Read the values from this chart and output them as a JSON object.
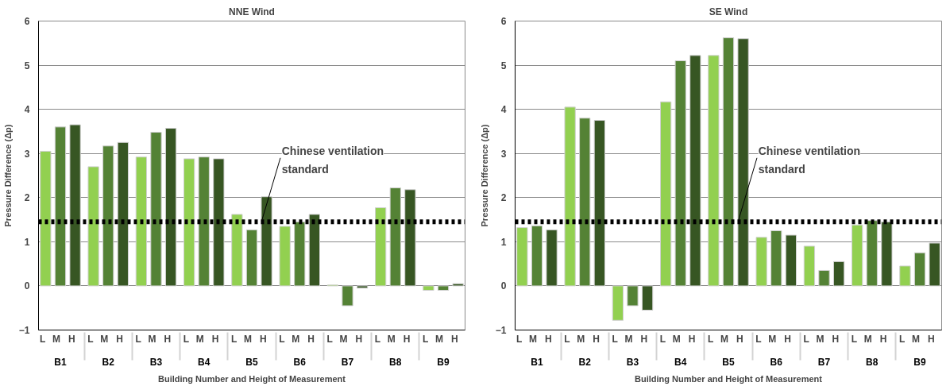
{
  "chart_data": [
    {
      "type": "bar",
      "title": "NNE Wind",
      "xlabel": "Building Number and Height of Measurement",
      "ylabel": "Pressure Difference (Δp)",
      "categories": [
        "L",
        "M",
        "H",
        "L",
        "M",
        "H",
        "L",
        "M",
        "H",
        "L",
        "M",
        "H",
        "L",
        "M",
        "H",
        "L",
        "M",
        "H",
        "L",
        "M",
        "H",
        "L",
        "M",
        "H",
        "L",
        "M",
        "H"
      ],
      "values": [
        3.05,
        3.6,
        3.65,
        2.7,
        3.17,
        3.25,
        2.92,
        3.48,
        3.57,
        2.88,
        2.92,
        2.88,
        1.62,
        1.27,
        2.02,
        1.35,
        1.45,
        1.62,
        0.02,
        -0.45,
        -0.05,
        1.77,
        2.22,
        2.18,
        -0.1,
        -0.1,
        0.05
      ],
      "colors": [
        "#92d050",
        "#548235",
        "#375623",
        "#92d050",
        "#548235",
        "#375623",
        "#92d050",
        "#548235",
        "#375623",
        "#92d050",
        "#548235",
        "#375623",
        "#92d050",
        "#548235",
        "#375623",
        "#92d050",
        "#548235",
        "#375623",
        "#92d050",
        "#548235",
        "#375623",
        "#92d050",
        "#548235",
        "#375623",
        "#92d050",
        "#548235",
        "#375623"
      ],
      "annotations": [
        "B1",
        "B2",
        "B3",
        "B4",
        "B5",
        "B6",
        "B7",
        "B8",
        "B9"
      ],
      "ref_lines": [
        {
          "axis": "y",
          "value": 1.45,
          "label": "Chinese ventilation standard",
          "color": "#000000",
          "line_style": "dotted"
        }
      ],
      "ylim": [
        -1,
        6
      ],
      "yticks": [
        -1,
        0,
        1,
        2,
        3,
        4,
        5,
        6
      ],
      "grid": "y"
    },
    {
      "type": "bar",
      "title": "SE Wind",
      "xlabel": "Building Number and Height of Measurement",
      "ylabel": "Pressure Difference (Δp)",
      "categories": [
        "L",
        "M",
        "H",
        "L",
        "M",
        "H",
        "L",
        "M",
        "H",
        "L",
        "M",
        "H",
        "L",
        "M",
        "H",
        "L",
        "M",
        "H",
        "L",
        "M",
        "H",
        "L",
        "M",
        "H",
        "L",
        "M",
        "H"
      ],
      "values": [
        1.32,
        1.36,
        1.27,
        4.05,
        3.8,
        3.75,
        -0.78,
        -0.45,
        -0.55,
        4.17,
        5.1,
        5.22,
        5.22,
        5.62,
        5.6,
        1.1,
        1.25,
        1.15,
        0.9,
        0.35,
        0.55,
        1.38,
        1.48,
        1.45,
        0.45,
        0.75,
        0.97
      ],
      "colors": [
        "#92d050",
        "#548235",
        "#375623",
        "#92d050",
        "#548235",
        "#375623",
        "#92d050",
        "#548235",
        "#375623",
        "#92d050",
        "#548235",
        "#375623",
        "#92d050",
        "#548235",
        "#375623",
        "#92d050",
        "#548235",
        "#375623",
        "#92d050",
        "#548235",
        "#375623",
        "#92d050",
        "#548235",
        "#375623",
        "#92d050",
        "#548235",
        "#375623"
      ],
      "annotations": [
        "B1",
        "B2",
        "B3",
        "B4",
        "B5",
        "B6",
        "B7",
        "B8",
        "B9"
      ],
      "ref_lines": [
        {
          "axis": "y",
          "value": 1.45,
          "label": "Chinese ventilation standard",
          "color": "#000000",
          "line_style": "dotted"
        }
      ],
      "ylim": [
        -1,
        6
      ],
      "yticks": [
        -1,
        0,
        1,
        2,
        3,
        4,
        5,
        6
      ],
      "grid": "y"
    }
  ]
}
